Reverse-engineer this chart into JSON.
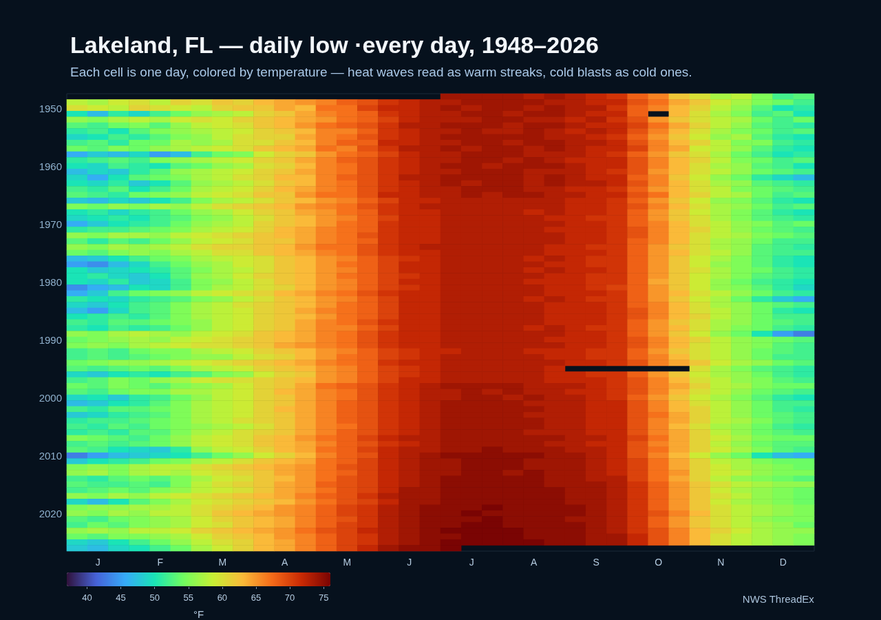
{
  "chart_data": {
    "type": "heatmap",
    "title": "Lakeland, FL — daily low ·every day, 1948–2026",
    "subtitle": "Each cell is one day, colored by temperature — heat waves read as warm streaks, cold blasts as cold ones.",
    "categories": [
      null,
      "J",
      null,
      null,
      "F",
      null,
      null,
      "M",
      null,
      null,
      "A",
      null,
      null,
      "M",
      null,
      null,
      "J",
      null,
      null,
      "J",
      null,
      null,
      "A",
      null,
      null,
      "S",
      null,
      null,
      "O",
      null,
      null,
      "N",
      null,
      null,
      "D",
      null
    ],
    "y_categories": [
      null,
      null,
      "1950",
      null,
      null,
      null,
      null,
      null,
      null,
      null,
      null,
      null,
      "1960",
      null,
      null,
      null,
      null,
      null,
      null,
      null,
      null,
      null,
      "1970",
      null,
      null,
      null,
      null,
      null,
      null,
      null,
      null,
      null,
      "1980",
      null,
      null,
      null,
      null,
      null,
      null,
      null,
      null,
      null,
      "1990",
      null,
      null,
      null,
      null,
      null,
      null,
      null,
      null,
      null,
      "2000",
      null,
      null,
      null,
      null,
      null,
      null,
      null,
      null,
      null,
      "2010",
      null,
      null,
      null,
      null,
      null,
      null,
      null,
      null,
      null,
      "2020",
      null,
      null,
      null,
      null,
      null,
      null
    ],
    "cells": [
      [
        null,
        null,
        null,
        null,
        null,
        null,
        null,
        null,
        null,
        null,
        null,
        null,
        null,
        null,
        null,
        null,
        null,
        null,
        74,
        74,
        74,
        74,
        73,
        74,
        73,
        72,
        71,
        68,
        66,
        62,
        60,
        57,
        58,
        55,
        52,
        53
      ],
      [
        58,
        57,
        59,
        60,
        58,
        61,
        60,
        62,
        61,
        63,
        64,
        65,
        66,
        68,
        69,
        71,
        72,
        73,
        73,
        74,
        74,
        74,
        74,
        73,
        73,
        72,
        72,
        69,
        67,
        64,
        62,
        59,
        57,
        55,
        54,
        52
      ],
      [
        60,
        59,
        58,
        61,
        60,
        59,
        58,
        61,
        62,
        62,
        64,
        63,
        67,
        67,
        70,
        72,
        72,
        73,
        74,
        73,
        74,
        74,
        73,
        74,
        73,
        73,
        71,
        68,
        66,
        63,
        61,
        58,
        56,
        53,
        50,
        51
      ],
      [
        50,
        47,
        51,
        49,
        52,
        54,
        56,
        57,
        58,
        61,
        62,
        64,
        66,
        67,
        68,
        71,
        72,
        73,
        73,
        74,
        74,
        73,
        74,
        74,
        73,
        72,
        72,
        68,
        null,
        63,
        60,
        57,
        55,
        52,
        53,
        50
      ],
      [
        56,
        55,
        57,
        58,
        57,
        59,
        60,
        59,
        61,
        62,
        63,
        64,
        65,
        67,
        68,
        70,
        72,
        73,
        73,
        73,
        74,
        74,
        73,
        73,
        72,
        73,
        71,
        69,
        65,
        62,
        60,
        58,
        57,
        54,
        52,
        54
      ],
      [
        53,
        52,
        54,
        55,
        53,
        56,
        58,
        59,
        60,
        62,
        63,
        65,
        67,
        68,
        69,
        71,
        73,
        73,
        74,
        74,
        74,
        73,
        74,
        74,
        73,
        72,
        72,
        70,
        67,
        64,
        61,
        58,
        56,
        53,
        52,
        51
      ],
      [
        51,
        52,
        50,
        53,
        55,
        56,
        57,
        58,
        59,
        61,
        62,
        63,
        66,
        66,
        68,
        71,
        72,
        73,
        73,
        74,
        73,
        73,
        74,
        73,
        72,
        73,
        72,
        69,
        66,
        63,
        60,
        57,
        55,
        54,
        52,
        53
      ],
      [
        49,
        50,
        52,
        51,
        53,
        55,
        56,
        58,
        60,
        61,
        61,
        64,
        66,
        67,
        69,
        71,
        72,
        73,
        74,
        74,
        74,
        74,
        74,
        73,
        73,
        72,
        71,
        68,
        65,
        62,
        59,
        56,
        57,
        53,
        51,
        50
      ],
      [
        52,
        53,
        51,
        54,
        54,
        57,
        56,
        57,
        60,
        60,
        62,
        63,
        66,
        68,
        68,
        72,
        72,
        73,
        73,
        74,
        74,
        73,
        74,
        74,
        73,
        73,
        72,
        69,
        66,
        63,
        61,
        58,
        55,
        55,
        52,
        51
      ],
      [
        54,
        53,
        55,
        54,
        56,
        57,
        58,
        59,
        60,
        62,
        63,
        64,
        67,
        66,
        69,
        71,
        73,
        73,
        74,
        73,
        74,
        74,
        73,
        74,
        73,
        72,
        72,
        70,
        66,
        64,
        59,
        58,
        56,
        53,
        51,
        50
      ],
      [
        46,
        48,
        47,
        49,
        45,
        47,
        52,
        54,
        55,
        59,
        61,
        62,
        65,
        67,
        68,
        70,
        72,
        73,
        73,
        74,
        74,
        74,
        73,
        73,
        73,
        72,
        71,
        68,
        65,
        62,
        60,
        57,
        54,
        52,
        50,
        51
      ],
      [
        51,
        52,
        53,
        52,
        55,
        56,
        57,
        58,
        59,
        61,
        62,
        64,
        66,
        68,
        69,
        71,
        72,
        73,
        73,
        74,
        74,
        73,
        74,
        73,
        72,
        72,
        72,
        69,
        66,
        63,
        61,
        58,
        55,
        54,
        52,
        53
      ],
      [
        50,
        49,
        52,
        51,
        50,
        53,
        54,
        56,
        57,
        60,
        61,
        63,
        66,
        67,
        69,
        71,
        72,
        73,
        74,
        74,
        73,
        74,
        74,
        74,
        73,
        72,
        72,
        69,
        66,
        63,
        60,
        57,
        56,
        53,
        52,
        50
      ],
      [
        47,
        49,
        48,
        51,
        53,
        56,
        57,
        58,
        59,
        61,
        62,
        64,
        66,
        67,
        69,
        71,
        72,
        73,
        73,
        74,
        74,
        74,
        73,
        73,
        73,
        72,
        71,
        69,
        65,
        63,
        60,
        58,
        56,
        54,
        53,
        52
      ],
      [
        49,
        46,
        50,
        53,
        54,
        55,
        57,
        58,
        60,
        61,
        63,
        63,
        66,
        68,
        69,
        71,
        73,
        73,
        74,
        74,
        74,
        74,
        73,
        74,
        73,
        72,
        72,
        68,
        66,
        62,
        59,
        56,
        54,
        51,
        49,
        47
      ],
      [
        50,
        49,
        51,
        48,
        50,
        53,
        56,
        57,
        58,
        60,
        62,
        63,
        66,
        67,
        69,
        71,
        72,
        73,
        74,
        73,
        74,
        74,
        73,
        74,
        73,
        73,
        72,
        69,
        66,
        63,
        60,
        57,
        56,
        53,
        52,
        51
      ],
      [
        52,
        51,
        53,
        50,
        52,
        54,
        57,
        58,
        59,
        61,
        63,
        64,
        66,
        67,
        69,
        71,
        72,
        73,
        73,
        74,
        74,
        74,
        73,
        73,
        72,
        72,
        71,
        68,
        65,
        63,
        60,
        58,
        55,
        54,
        53,
        52
      ],
      [
        53,
        52,
        51,
        54,
        55,
        56,
        58,
        59,
        60,
        62,
        62,
        65,
        67,
        67,
        69,
        72,
        72,
        73,
        73,
        74,
        73,
        74,
        74,
        73,
        73,
        72,
        72,
        69,
        67,
        63,
        61,
        58,
        57,
        54,
        52,
        53
      ],
      [
        48,
        47,
        49,
        48,
        50,
        52,
        55,
        57,
        58,
        60,
        62,
        63,
        65,
        66,
        68,
        70,
        72,
        72,
        73,
        73,
        73,
        73,
        73,
        73,
        72,
        72,
        71,
        68,
        65,
        62,
        59,
        56,
        55,
        53,
        51,
        50
      ],
      [
        55,
        54,
        56,
        55,
        57,
        56,
        58,
        60,
        61,
        62,
        63,
        65,
        66,
        67,
        69,
        71,
        72,
        73,
        73,
        73,
        73,
        73,
        73,
        73,
        72,
        72,
        71,
        69,
        66,
        63,
        60,
        57,
        56,
        54,
        52,
        53
      ],
      [
        50,
        51,
        49,
        51,
        52,
        54,
        56,
        57,
        59,
        61,
        62,
        64,
        65,
        67,
        68,
        71,
        72,
        72,
        73,
        73,
        73,
        73,
        72,
        73,
        72,
        72,
        71,
        68,
        65,
        62,
        59,
        57,
        55,
        53,
        51,
        50
      ],
      [
        49,
        50,
        51,
        50,
        52,
        53,
        55,
        56,
        58,
        60,
        62,
        63,
        65,
        66,
        68,
        70,
        72,
        72,
        73,
        73,
        73,
        73,
        73,
        72,
        72,
        71,
        71,
        68,
        65,
        62,
        60,
        57,
        55,
        53,
        52,
        51
      ],
      [
        46,
        48,
        50,
        51,
        52,
        54,
        56,
        57,
        58,
        61,
        62,
        63,
        65,
        67,
        68,
        71,
        72,
        72,
        73,
        73,
        73,
        73,
        73,
        73,
        72,
        72,
        71,
        68,
        66,
        63,
        60,
        58,
        56,
        55,
        53,
        54
      ],
      [
        51,
        52,
        52,
        53,
        54,
        55,
        57,
        58,
        59,
        61,
        63,
        64,
        66,
        67,
        68,
        71,
        72,
        72,
        73,
        73,
        73,
        73,
        73,
        72,
        72,
        72,
        71,
        69,
        66,
        63,
        61,
        58,
        56,
        54,
        53,
        52
      ],
      [
        56,
        55,
        57,
        57,
        56,
        58,
        59,
        60,
        61,
        62,
        63,
        64,
        66,
        67,
        69,
        71,
        72,
        72,
        73,
        73,
        73,
        73,
        73,
        73,
        72,
        72,
        71,
        69,
        66,
        63,
        60,
        58,
        57,
        55,
        54,
        53
      ],
      [
        53,
        51,
        53,
        52,
        54,
        56,
        58,
        59,
        60,
        62,
        62,
        64,
        66,
        67,
        68,
        71,
        72,
        72,
        73,
        73,
        73,
        73,
        73,
        73,
        72,
        72,
        71,
        68,
        66,
        63,
        60,
        57,
        56,
        54,
        52,
        52
      ],
      [
        56,
        55,
        57,
        56,
        57,
        58,
        60,
        61,
        61,
        62,
        63,
        65,
        67,
        67,
        69,
        71,
        72,
        73,
        73,
        73,
        73,
        73,
        73,
        72,
        72,
        71,
        71,
        68,
        65,
        62,
        60,
        57,
        56,
        53,
        52,
        51
      ],
      [
        54,
        53,
        55,
        56,
        55,
        57,
        58,
        60,
        60,
        62,
        63,
        64,
        66,
        67,
        69,
        71,
        72,
        72,
        73,
        73,
        73,
        73,
        73,
        72,
        72,
        72,
        71,
        68,
        65,
        63,
        60,
        58,
        56,
        53,
        52,
        52
      ],
      [
        47,
        48,
        50,
        52,
        54,
        55,
        57,
        58,
        59,
        60,
        62,
        63,
        65,
        66,
        68,
        70,
        71,
        72,
        73,
        73,
        73,
        73,
        72,
        73,
        72,
        71,
        71,
        68,
        65,
        62,
        59,
        57,
        55,
        53,
        51,
        50
      ],
      [
        45,
        44,
        47,
        49,
        52,
        54,
        56,
        57,
        59,
        60,
        62,
        63,
        65,
        67,
        68,
        70,
        72,
        72,
        73,
        73,
        73,
        73,
        73,
        72,
        72,
        71,
        71,
        68,
        65,
        62,
        59,
        56,
        55,
        53,
        51,
        50
      ],
      [
        50,
        48,
        49,
        50,
        51,
        53,
        55,
        57,
        58,
        60,
        62,
        63,
        65,
        66,
        68,
        70,
        72,
        72,
        73,
        73,
        73,
        73,
        72,
        73,
        72,
        72,
        71,
        68,
        65,
        62,
        60,
        57,
        55,
        54,
        52,
        51
      ],
      [
        50,
        51,
        49,
        48,
        50,
        53,
        56,
        57,
        59,
        61,
        62,
        63,
        65,
        67,
        68,
        70,
        71,
        72,
        73,
        73,
        73,
        73,
        73,
        72,
        72,
        71,
        71,
        68,
        65,
        62,
        59,
        57,
        55,
        53,
        52,
        51
      ],
      [
        50,
        49,
        51,
        48,
        49,
        52,
        55,
        56,
        58,
        60,
        62,
        63,
        65,
        66,
        68,
        70,
        72,
        72,
        73,
        73,
        73,
        73,
        72,
        72,
        72,
        71,
        71,
        68,
        64,
        62,
        59,
        56,
        54,
        52,
        51,
        50
      ],
      [
        44,
        46,
        47,
        50,
        49,
        52,
        55,
        57,
        58,
        60,
        61,
        63,
        65,
        66,
        68,
        70,
        71,
        72,
        73,
        73,
        73,
        73,
        73,
        72,
        72,
        71,
        70,
        68,
        65,
        62,
        59,
        56,
        55,
        53,
        51,
        49
      ],
      [
        46,
        48,
        52,
        54,
        55,
        56,
        58,
        59,
        60,
        61,
        63,
        64,
        66,
        67,
        69,
        71,
        72,
        72,
        73,
        73,
        73,
        73,
        73,
        72,
        72,
        72,
        71,
        68,
        65,
        63,
        60,
        58,
        56,
        54,
        52,
        51
      ],
      [
        51,
        50,
        49,
        51,
        52,
        53,
        55,
        56,
        58,
        60,
        62,
        63,
        65,
        66,
        68,
        70,
        72,
        72,
        73,
        73,
        73,
        73,
        72,
        73,
        72,
        71,
        71,
        68,
        65,
        62,
        59,
        57,
        54,
        51,
        48,
        46
      ],
      [
        49,
        48,
        50,
        52,
        53,
        55,
        57,
        58,
        60,
        61,
        62,
        63,
        65,
        67,
        68,
        70,
        72,
        72,
        73,
        73,
        73,
        73,
        73,
        72,
        72,
        72,
        71,
        68,
        66,
        63,
        60,
        57,
        56,
        54,
        53,
        52
      ],
      [
        47,
        45,
        49,
        52,
        53,
        55,
        57,
        58,
        59,
        61,
        62,
        64,
        66,
        67,
        68,
        70,
        72,
        72,
        73,
        73,
        73,
        73,
        73,
        72,
        72,
        72,
        71,
        69,
        66,
        63,
        60,
        58,
        56,
        54,
        51,
        50
      ],
      [
        50,
        51,
        52,
        51,
        53,
        55,
        57,
        58,
        59,
        61,
        62,
        63,
        65,
        67,
        68,
        70,
        72,
        72,
        73,
        73,
        73,
        73,
        73,
        72,
        72,
        72,
        71,
        69,
        66,
        63,
        61,
        58,
        56,
        54,
        52,
        52
      ],
      [
        52,
        51,
        53,
        53,
        54,
        55,
        56,
        58,
        59,
        61,
        62,
        64,
        66,
        67,
        69,
        71,
        72,
        72,
        73,
        73,
        73,
        73,
        73,
        72,
        72,
        72,
        71,
        68,
        65,
        62,
        60,
        57,
        56,
        54,
        53,
        52
      ],
      [
        51,
        50,
        52,
        51,
        52,
        54,
        56,
        58,
        59,
        61,
        62,
        64,
        66,
        66,
        68,
        70,
        72,
        72,
        73,
        73,
        73,
        73,
        72,
        73,
        72,
        71,
        71,
        68,
        65,
        63,
        60,
        57,
        55,
        54,
        52,
        51
      ],
      [
        56,
        55,
        57,
        58,
        57,
        56,
        58,
        59,
        60,
        62,
        63,
        64,
        66,
        67,
        69,
        71,
        72,
        72,
        73,
        73,
        73,
        73,
        73,
        73,
        72,
        72,
        71,
        68,
        65,
        62,
        59,
        56,
        54,
        50,
        45,
        43
      ],
      [
        54,
        55,
        56,
        57,
        56,
        58,
        59,
        60,
        61,
        62,
        63,
        64,
        66,
        67,
        69,
        71,
        72,
        72,
        73,
        73,
        73,
        73,
        73,
        72,
        72,
        72,
        71,
        69,
        66,
        63,
        61,
        58,
        56,
        55,
        54,
        53
      ],
      [
        55,
        56,
        55,
        57,
        58,
        59,
        60,
        60,
        61,
        62,
        64,
        65,
        66,
        67,
        69,
        71,
        72,
        72,
        73,
        73,
        73,
        73,
        73,
        73,
        72,
        72,
        71,
        69,
        66,
        63,
        60,
        58,
        56,
        55,
        53,
        52
      ],
      [
        52,
        53,
        52,
        54,
        55,
        55,
        57,
        58,
        59,
        61,
        62,
        63,
        65,
        66,
        68,
        70,
        71,
        72,
        72,
        73,
        73,
        73,
        72,
        72,
        72,
        71,
        71,
        68,
        65,
        62,
        60,
        58,
        56,
        54,
        53,
        52
      ],
      [
        52,
        53,
        52,
        53,
        54,
        55,
        56,
        56,
        58,
        60,
        61,
        63,
        65,
        67,
        68,
        70,
        71,
        72,
        73,
        73,
        73,
        73,
        73,
        72,
        72,
        71,
        71,
        68,
        66,
        63,
        60,
        58,
        56,
        54,
        52,
        52
      ],
      [
        54,
        55,
        56,
        56,
        57,
        58,
        59,
        60,
        61,
        62,
        63,
        64,
        66,
        67,
        68,
        71,
        72,
        72,
        73,
        73,
        73,
        73,
        73,
        73,
        72,
        72,
        71,
        69,
        66,
        64,
        62,
        59,
        57,
        56,
        54,
        53
      ],
      [
        53,
        52,
        53,
        54,
        53,
        55,
        57,
        58,
        59,
        61,
        62,
        63,
        65,
        66,
        68,
        70,
        71,
        72,
        73,
        73,
        73,
        73,
        73,
        72,
        null,
        null,
        null,
        null,
        null,
        null,
        60,
        57,
        55,
        53,
        52,
        51
      ],
      [
        49,
        48,
        50,
        51,
        50,
        52,
        53,
        55,
        56,
        59,
        61,
        62,
        65,
        66,
        68,
        70,
        71,
        72,
        73,
        73,
        73,
        73,
        73,
        72,
        72,
        71,
        71,
        68,
        65,
        62,
        59,
        57,
        56,
        54,
        52,
        51
      ],
      [
        52,
        53,
        55,
        54,
        56,
        57,
        59,
        60,
        60,
        61,
        62,
        63,
        65,
        66,
        68,
        70,
        72,
        72,
        73,
        73,
        73,
        73,
        73,
        72,
        72,
        72,
        71,
        69,
        66,
        63,
        60,
        58,
        56,
        55,
        53,
        52
      ],
      [
        54,
        53,
        55,
        54,
        53,
        55,
        56,
        57,
        59,
        61,
        62,
        64,
        67,
        68,
        69,
        71,
        72,
        73,
        74,
        74,
        74,
        74,
        73,
        73,
        73,
        72,
        71,
        69,
        66,
        64,
        61,
        58,
        57,
        55,
        54,
        54
      ],
      [
        53,
        52,
        54,
        55,
        55,
        57,
        57,
        58,
        59,
        61,
        63,
        64,
        66,
        67,
        69,
        71,
        72,
        73,
        73,
        74,
        73,
        74,
        73,
        73,
        72,
        72,
        71,
        69,
        66,
        63,
        60,
        58,
        56,
        54,
        53,
        52
      ],
      [
        49,
        50,
        48,
        51,
        52,
        54,
        56,
        58,
        59,
        61,
        62,
        64,
        66,
        67,
        69,
        71,
        72,
        73,
        73,
        74,
        74,
        73,
        74,
        73,
        73,
        72,
        71,
        68,
        65,
        62,
        59,
        57,
        55,
        53,
        51,
        50
      ],
      [
        47,
        48,
        50,
        51,
        53,
        55,
        57,
        58,
        59,
        61,
        62,
        64,
        66,
        68,
        69,
        71,
        72,
        73,
        74,
        74,
        74,
        74,
        73,
        73,
        73,
        72,
        72,
        69,
        66,
        63,
        60,
        58,
        56,
        54,
        52,
        52
      ],
      [
        52,
        51,
        53,
        53,
        54,
        55,
        57,
        58,
        59,
        61,
        63,
        64,
        66,
        68,
        69,
        71,
        72,
        73,
        74,
        74,
        74,
        74,
        74,
        73,
        73,
        72,
        72,
        69,
        66,
        63,
        61,
        58,
        56,
        54,
        52,
        51
      ],
      [
        48,
        49,
        51,
        52,
        53,
        55,
        57,
        58,
        59,
        61,
        62,
        64,
        66,
        68,
        69,
        71,
        72,
        73,
        74,
        74,
        74,
        74,
        73,
        73,
        73,
        72,
        72,
        69,
        67,
        64,
        61,
        58,
        56,
        54,
        53,
        52
      ],
      [
        51,
        52,
        52,
        53,
        54,
        55,
        57,
        58,
        60,
        61,
        62,
        64,
        66,
        68,
        69,
        71,
        72,
        73,
        74,
        74,
        74,
        74,
        74,
        73,
        73,
        72,
        72,
        69,
        66,
        64,
        61,
        58,
        57,
        55,
        53,
        52
      ],
      [
        52,
        51,
        53,
        52,
        54,
        55,
        56,
        57,
        58,
        60,
        62,
        64,
        66,
        67,
        69,
        71,
        72,
        73,
        74,
        74,
        74,
        74,
        74,
        73,
        73,
        72,
        72,
        69,
        66,
        63,
        60,
        57,
        56,
        54,
        52,
        51
      ],
      [
        51,
        52,
        51,
        53,
        53,
        55,
        57,
        58,
        60,
        61,
        62,
        64,
        66,
        68,
        69,
        71,
        72,
        73,
        74,
        74,
        74,
        74,
        73,
        73,
        73,
        72,
        72,
        69,
        66,
        64,
        61,
        58,
        56,
        54,
        53,
        52
      ],
      [
        55,
        54,
        53,
        52,
        54,
        56,
        58,
        59,
        60,
        62,
        63,
        65,
        67,
        68,
        70,
        72,
        73,
        73,
        74,
        74,
        74,
        74,
        74,
        74,
        73,
        73,
        72,
        70,
        67,
        64,
        61,
        59,
        57,
        55,
        54,
        54
      ],
      [
        52,
        53,
        52,
        53,
        54,
        56,
        58,
        59,
        60,
        62,
        63,
        64,
        66,
        68,
        69,
        71,
        72,
        73,
        74,
        74,
        74,
        74,
        74,
        73,
        73,
        72,
        72,
        69,
        66,
        64,
        61,
        58,
        56,
        54,
        53,
        53
      ],
      [
        53,
        52,
        50,
        49,
        48,
        51,
        56,
        58,
        59,
        61,
        63,
        64,
        67,
        68,
        70,
        72,
        73,
        73,
        74,
        74,
        75,
        74,
        74,
        74,
        73,
        73,
        72,
        69,
        67,
        64,
        61,
        59,
        57,
        55,
        53,
        52
      ],
      [
        43,
        45,
        47,
        48,
        49,
        50,
        52,
        54,
        56,
        59,
        61,
        63,
        66,
        68,
        69,
        72,
        73,
        74,
        75,
        75,
        75,
        75,
        75,
        74,
        74,
        73,
        72,
        69,
        66,
        63,
        59,
        56,
        54,
        50,
        47,
        46
      ],
      [
        48,
        50,
        51,
        52,
        54,
        55,
        57,
        58,
        60,
        62,
        63,
        64,
        67,
        68,
        70,
        72,
        73,
        74,
        74,
        75,
        75,
        75,
        74,
        74,
        74,
        73,
        72,
        70,
        67,
        64,
        61,
        58,
        57,
        55,
        54,
        54
      ],
      [
        55,
        56,
        55,
        57,
        58,
        58,
        60,
        61,
        62,
        63,
        64,
        65,
        67,
        69,
        70,
        72,
        73,
        74,
        74,
        75,
        75,
        75,
        74,
        74,
        74,
        73,
        72,
        70,
        67,
        64,
        61,
        59,
        57,
        56,
        55,
        54
      ],
      [
        56,
        57,
        55,
        57,
        58,
        57,
        59,
        60,
        61,
        62,
        64,
        65,
        67,
        68,
        70,
        72,
        73,
        74,
        74,
        75,
        75,
        74,
        75,
        74,
        74,
        73,
        72,
        70,
        67,
        65,
        61,
        59,
        58,
        56,
        55,
        55
      ],
      [
        52,
        51,
        53,
        54,
        53,
        55,
        57,
        59,
        60,
        62,
        63,
        65,
        67,
        69,
        70,
        72,
        73,
        74,
        75,
        75,
        75,
        75,
        75,
        74,
        74,
        73,
        73,
        70,
        67,
        64,
        61,
        58,
        56,
        55,
        54,
        53
      ],
      [
        53,
        52,
        52,
        53,
        52,
        55,
        58,
        60,
        61,
        62,
        64,
        65,
        68,
        69,
        70,
        72,
        73,
        74,
        75,
        75,
        75,
        75,
        75,
        74,
        74,
        74,
        73,
        71,
        68,
        65,
        62,
        60,
        58,
        57,
        56,
        56
      ],
      [
        52,
        53,
        54,
        53,
        55,
        56,
        58,
        59,
        60,
        62,
        64,
        65,
        67,
        69,
        70,
        72,
        74,
        74,
        75,
        75,
        75,
        75,
        75,
        75,
        74,
        74,
        73,
        71,
        68,
        65,
        62,
        59,
        57,
        56,
        55,
        54
      ],
      [
        56,
        55,
        57,
        56,
        58,
        59,
        60,
        61,
        62,
        63,
        64,
        66,
        68,
        69,
        71,
        73,
        74,
        74,
        75,
        75,
        75,
        75,
        75,
        75,
        74,
        74,
        73,
        71,
        68,
        65,
        62,
        60,
        58,
        56,
        55,
        54
      ],
      [
        49,
        47,
        50,
        53,
        55,
        57,
        59,
        60,
        61,
        62,
        63,
        65,
        67,
        69,
        70,
        72,
        74,
        74,
        75,
        75,
        75,
        75,
        75,
        75,
        74,
        74,
        73,
        71,
        68,
        65,
        62,
        59,
        57,
        56,
        55,
        54
      ],
      [
        55,
        56,
        56,
        57,
        57,
        58,
        60,
        61,
        62,
        63,
        65,
        66,
        68,
        70,
        71,
        73,
        74,
        75,
        75,
        75,
        76,
        75,
        75,
        75,
        75,
        74,
        73,
        71,
        68,
        65,
        62,
        60,
        58,
        57,
        56,
        55
      ],
      [
        56,
        55,
        57,
        56,
        58,
        58,
        60,
        62,
        63,
        64,
        65,
        66,
        68,
        70,
        71,
        73,
        74,
        75,
        75,
        76,
        75,
        75,
        75,
        75,
        75,
        74,
        73,
        71,
        69,
        66,
        63,
        60,
        58,
        57,
        56,
        55
      ],
      [
        53,
        52,
        54,
        55,
        56,
        57,
        59,
        61,
        62,
        63,
        64,
        66,
        68,
        69,
        71,
        73,
        74,
        75,
        75,
        75,
        76,
        75,
        75,
        75,
        74,
        74,
        73,
        71,
        68,
        65,
        62,
        60,
        58,
        56,
        55,
        55
      ],
      [
        52,
        54,
        53,
        55,
        56,
        57,
        59,
        60,
        62,
        63,
        64,
        66,
        68,
        70,
        71,
        73,
        74,
        75,
        75,
        76,
        76,
        75,
        75,
        75,
        75,
        74,
        73,
        71,
        68,
        65,
        62,
        60,
        58,
        57,
        56,
        54
      ],
      [
        56,
        57,
        56,
        58,
        58,
        59,
        61,
        62,
        63,
        64,
        65,
        67,
        69,
        70,
        72,
        73,
        74,
        75,
        76,
        76,
        76,
        76,
        75,
        75,
        75,
        74,
        73,
        71,
        69,
        66,
        63,
        61,
        59,
        57,
        56,
        56
      ],
      [
        54,
        53,
        55,
        55,
        56,
        57,
        59,
        61,
        62,
        63,
        65,
        66,
        68,
        70,
        71,
        73,
        74,
        75,
        75,
        76,
        76,
        76,
        75,
        75,
        75,
        74,
        74,
        72,
        69,
        66,
        63,
        60,
        58,
        57,
        56,
        55
      ],
      [
        49,
        48,
        50,
        52,
        54,
        56,
        58,
        60,
        61,
        63,
        64,
        66,
        68,
        70,
        71,
        73,
        74,
        75,
        76,
        76,
        76,
        76,
        76,
        75,
        75,
        74,
        74,
        72,
        69,
        66,
        63,
        60,
        58,
        57,
        56,
        55
      ],
      [
        48,
        47,
        49,
        50,
        52,
        54,
        57,
        59,
        61,
        63,
        64,
        66,
        68,
        70,
        72,
        74,
        75,
        75,
        76,
        null,
        null,
        null,
        null,
        null,
        null,
        null,
        null,
        null,
        null,
        null,
        null,
        null,
        null,
        null,
        null,
        null
      ]
    ],
    "clim": [
      37,
      76
    ],
    "cticks": [
      40,
      45,
      50,
      55,
      60,
      65,
      70,
      75
    ],
    "clabel": "°F",
    "annotations": [
      "NWS ThreadEx"
    ]
  }
}
